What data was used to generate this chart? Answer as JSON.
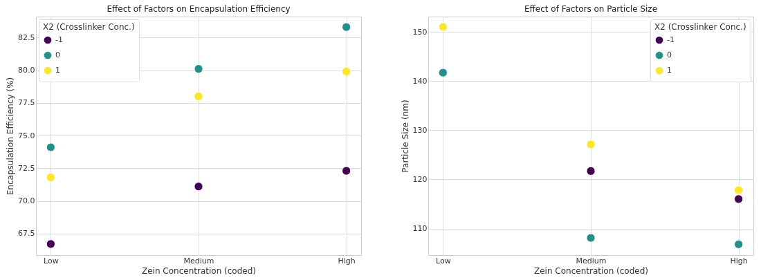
{
  "chart_data": [
    {
      "type": "scatter",
      "title": "Effect of Factors on Encapsulation Efficiency",
      "xlabel": "Zein Concentration (coded)",
      "ylabel": "Encapsulation Efficiency (%)",
      "legend_title": "X2 (Crosslinker Conc.)",
      "categories": [
        "Low",
        "Medium",
        "High"
      ],
      "series": [
        {
          "name": "-1",
          "color": "#440154",
          "values": [
            66.7,
            71.1,
            72.3
          ]
        },
        {
          "name": "0",
          "color": "#21918c",
          "values": [
            74.1,
            80.1,
            83.3
          ]
        },
        {
          "name": "1",
          "color": "#fde725",
          "values": [
            71.8,
            78.0,
            79.9
          ]
        }
      ],
      "ylim": [
        65.85,
        84.1
      ],
      "yticks": [
        67.5,
        {
          "value": 70,
          "label": "70.0"
        },
        72.5,
        {
          "value": 75,
          "label": "75.0"
        },
        77.5,
        {
          "value": 80,
          "label": "80.0"
        },
        82.5
      ],
      "grid": true,
      "legend": "top left",
      "marker": "circle"
    },
    {
      "type": "scatter",
      "title": "Effect of Factors on Particle Size",
      "xlabel": "Zein Concentration (coded)",
      "ylabel": "Particle Size (nm)",
      "legend_title": "X2 (Crosslinker Conc.)",
      "categories": [
        "Low",
        "Medium",
        "High"
      ],
      "series": [
        {
          "name": "-1",
          "color": "#440154",
          "values": [
            null,
            121.7,
            116.0
          ]
        },
        {
          "name": "0",
          "color": "#21918c",
          "values": [
            141.7,
            108.1,
            106.8
          ]
        },
        {
          "name": "1",
          "color": "#fde725",
          "values": [
            151.0,
            127.1,
            117.8
          ]
        }
      ],
      "ylim": [
        104.6,
        153.1
      ],
      "yticks": [
        110,
        120,
        130,
        140,
        150
      ],
      "grid": true,
      "legend": "top right",
      "marker": "circle"
    }
  ]
}
